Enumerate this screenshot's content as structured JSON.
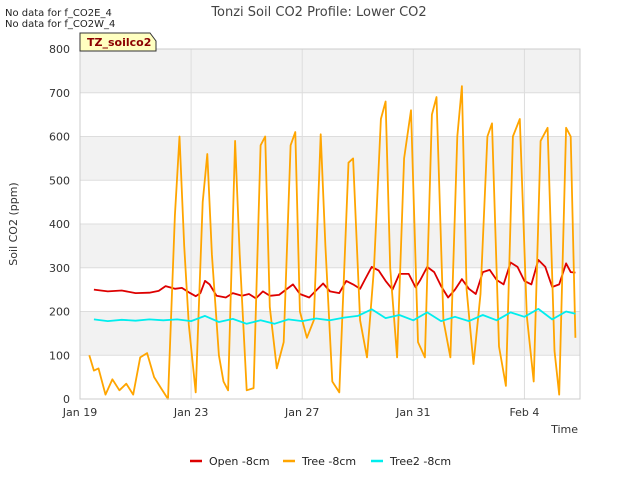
{
  "no_data_messages": [
    "No data for f_CO2E_4",
    "No data for f_CO2W_4"
  ],
  "tag_label": "TZ_soilco2",
  "chart_data": {
    "type": "line",
    "title": "Tonzi Soil CO2 Profile: Lower CO2",
    "xlabel": "Time",
    "ylabel": "Soil CO2 (ppm)",
    "xlim": [
      "2025-01-19",
      "2025-02-06"
    ],
    "ylim": [
      0,
      800
    ],
    "x_ticks": [
      {
        "date": "2025-01-19",
        "label": "Jan 19"
      },
      {
        "date": "2025-01-23",
        "label": "Jan 23"
      },
      {
        "date": "2025-01-27",
        "label": "Jan 27"
      },
      {
        "date": "2025-01-31",
        "label": "Jan 31"
      },
      {
        "date": "2025-02-04",
        "label": "Feb 4"
      }
    ],
    "y_ticks": [
      0,
      100,
      200,
      300,
      400,
      500,
      600,
      700,
      800
    ],
    "grid": true,
    "background_bands": true,
    "legend_position": "bottom",
    "series": [
      {
        "name": "Open -8cm",
        "color": "#dd0000",
        "points": [
          [
            "2025-01-19 12:00",
            250
          ],
          [
            "2025-01-19 18:00",
            248
          ],
          [
            "2025-01-20 00:00",
            246
          ],
          [
            "2025-01-20 12:00",
            248
          ],
          [
            "2025-01-21 00:00",
            242
          ],
          [
            "2025-01-21 12:00",
            243
          ],
          [
            "2025-01-21 20:00",
            247
          ],
          [
            "2025-01-22 02:00",
            258
          ],
          [
            "2025-01-22 10:00",
            252
          ],
          [
            "2025-01-22 16:00",
            254
          ],
          [
            "2025-01-22 22:00",
            244
          ],
          [
            "2025-01-23 04:00",
            235
          ],
          [
            "2025-01-23 08:00",
            242
          ],
          [
            "2025-01-23 12:00",
            270
          ],
          [
            "2025-01-23 16:00",
            262
          ],
          [
            "2025-01-23 22:00",
            236
          ],
          [
            "2025-01-24 06:00",
            232
          ],
          [
            "2025-01-24 12:00",
            242
          ],
          [
            "2025-01-24 20:00",
            236
          ],
          [
            "2025-01-25 02:00",
            240
          ],
          [
            "2025-01-25 08:00",
            230
          ],
          [
            "2025-01-25 14:00",
            246
          ],
          [
            "2025-01-25 20:00",
            236
          ],
          [
            "2025-01-26 04:00",
            238
          ],
          [
            "2025-01-26 10:00",
            250
          ],
          [
            "2025-01-26 16:00",
            262
          ],
          [
            "2025-01-26 22:00",
            240
          ],
          [
            "2025-01-27 06:00",
            232
          ],
          [
            "2025-01-27 12:00",
            248
          ],
          [
            "2025-01-27 18:00",
            264
          ],
          [
            "2025-01-28 00:00",
            246
          ],
          [
            "2025-01-28 08:00",
            242
          ],
          [
            "2025-01-28 14:00",
            270
          ],
          [
            "2025-01-28 20:00",
            262
          ],
          [
            "2025-01-29 02:00",
            252
          ],
          [
            "2025-01-29 06:00",
            272
          ],
          [
            "2025-01-29 12:00",
            302
          ],
          [
            "2025-01-29 18:00",
            294
          ],
          [
            "2025-01-30 00:00",
            270
          ],
          [
            "2025-01-30 06:00",
            250
          ],
          [
            "2025-01-30 12:00",
            286
          ],
          [
            "2025-01-30 20:00",
            286
          ],
          [
            "2025-01-31 02:00",
            255
          ],
          [
            "2025-01-31 06:00",
            272
          ],
          [
            "2025-01-31 12:00",
            302
          ],
          [
            "2025-01-31 18:00",
            290
          ],
          [
            "2025-02-01 00:00",
            258
          ],
          [
            "2025-02-01 06:00",
            232
          ],
          [
            "2025-02-01 12:00",
            250
          ],
          [
            "2025-02-01 18:00",
            274
          ],
          [
            "2025-02-02 00:00",
            252
          ],
          [
            "2025-02-02 06:00",
            240
          ],
          [
            "2025-02-02 12:00",
            290
          ],
          [
            "2025-02-02 18:00",
            295
          ],
          [
            "2025-02-03 00:00",
            272
          ],
          [
            "2025-02-03 06:00",
            262
          ],
          [
            "2025-02-03 12:00",
            312
          ],
          [
            "2025-02-03 18:00",
            302
          ],
          [
            "2025-02-04 00:00",
            270
          ],
          [
            "2025-02-04 06:00",
            262
          ],
          [
            "2025-02-04 12:00",
            318
          ],
          [
            "2025-02-04 18:00",
            302
          ],
          [
            "2025-02-05 00:00",
            256
          ],
          [
            "2025-02-05 06:00",
            262
          ],
          [
            "2025-02-05 12:00",
            310
          ],
          [
            "2025-02-05 16:00",
            290
          ],
          [
            "2025-02-05 20:00",
            289
          ]
        ]
      },
      {
        "name": "Tree -8cm",
        "color": "#ffa500",
        "points": [
          [
            "2025-01-19 08:00",
            100
          ],
          [
            "2025-01-19 12:00",
            65
          ],
          [
            "2025-01-19 16:00",
            70
          ],
          [
            "2025-01-19 22:00",
            10
          ],
          [
            "2025-01-20 04:00",
            45
          ],
          [
            "2025-01-20 10:00",
            20
          ],
          [
            "2025-01-20 16:00",
            35
          ],
          [
            "2025-01-20 22:00",
            10
          ],
          [
            "2025-01-21 04:00",
            95
          ],
          [
            "2025-01-21 10:00",
            105
          ],
          [
            "2025-01-21 16:00",
            50
          ],
          [
            "2025-01-21 22:00",
            25
          ],
          [
            "2025-01-22 04:00",
            0
          ],
          [
            "2025-01-22 10:00",
            420
          ],
          [
            "2025-01-22 14:00",
            600
          ],
          [
            "2025-01-22 18:00",
            350
          ],
          [
            "2025-01-22 22:00",
            170
          ],
          [
            "2025-01-23 04:00",
            15
          ],
          [
            "2025-01-23 10:00",
            450
          ],
          [
            "2025-01-23 14:00",
            560
          ],
          [
            "2025-01-23 18:00",
            330
          ],
          [
            "2025-01-24 00:00",
            100
          ],
          [
            "2025-01-24 04:00",
            40
          ],
          [
            "2025-01-24 08:00",
            20
          ],
          [
            "2025-01-24 14:00",
            590
          ],
          [
            "2025-01-24 18:00",
            330
          ],
          [
            "2025-01-25 00:00",
            20
          ],
          [
            "2025-01-25 06:00",
            25
          ],
          [
            "2025-01-25 12:00",
            580
          ],
          [
            "2025-01-25 16:00",
            600
          ],
          [
            "2025-01-25 20:00",
            210
          ],
          [
            "2025-01-26 02:00",
            70
          ],
          [
            "2025-01-26 08:00",
            130
          ],
          [
            "2025-01-26 14:00",
            580
          ],
          [
            "2025-01-26 18:00",
            610
          ],
          [
            "2025-01-26 22:00",
            200
          ],
          [
            "2025-01-27 04:00",
            140
          ],
          [
            "2025-01-27 10:00",
            180
          ],
          [
            "2025-01-27 16:00",
            605
          ],
          [
            "2025-01-27 20:00",
            350
          ],
          [
            "2025-01-28 02:00",
            40
          ],
          [
            "2025-01-28 08:00",
            15
          ],
          [
            "2025-01-28 16:00",
            540
          ],
          [
            "2025-01-28 20:00",
            550
          ],
          [
            "2025-01-29 02:00",
            180
          ],
          [
            "2025-01-29 08:00",
            95
          ],
          [
            "2025-01-29 14:00",
            300
          ],
          [
            "2025-01-29 20:00",
            640
          ],
          [
            "2025-01-30 00:00",
            680
          ],
          [
            "2025-01-30 04:00",
            300
          ],
          [
            "2025-01-30 10:00",
            95
          ],
          [
            "2025-01-30 16:00",
            550
          ],
          [
            "2025-01-30 22:00",
            660
          ],
          [
            "2025-01-31 04:00",
            130
          ],
          [
            "2025-01-31 10:00",
            95
          ],
          [
            "2025-01-31 16:00",
            650
          ],
          [
            "2025-01-31 20:00",
            690
          ],
          [
            "2025-02-01 02:00",
            180
          ],
          [
            "2025-02-01 08:00",
            95
          ],
          [
            "2025-02-01 14:00",
            600
          ],
          [
            "2025-02-01 18:00",
            715
          ],
          [
            "2025-02-01 22:00",
            250
          ],
          [
            "2025-02-02 04:00",
            80
          ],
          [
            "2025-02-02 10:00",
            240
          ],
          [
            "2025-02-02 16:00",
            600
          ],
          [
            "2025-02-02 20:00",
            630
          ],
          [
            "2025-02-03 02:00",
            120
          ],
          [
            "2025-02-03 08:00",
            30
          ],
          [
            "2025-02-03 14:00",
            600
          ],
          [
            "2025-02-03 20:00",
            640
          ],
          [
            "2025-02-04 02:00",
            190
          ],
          [
            "2025-02-04 08:00",
            40
          ],
          [
            "2025-02-04 14:00",
            590
          ],
          [
            "2025-02-04 20:00",
            620
          ],
          [
            "2025-02-05 02:00",
            110
          ],
          [
            "2025-02-05 06:00",
            10
          ],
          [
            "2025-02-05 12:00",
            620
          ],
          [
            "2025-02-05 16:00",
            600
          ],
          [
            "2025-02-05 20:00",
            140
          ]
        ]
      },
      {
        "name": "Tree2 -8cm",
        "color": "#00eeee",
        "points": [
          [
            "2025-01-19 12:00",
            182
          ],
          [
            "2025-01-20 00:00",
            178
          ],
          [
            "2025-01-20 12:00",
            181
          ],
          [
            "2025-01-21 00:00",
            179
          ],
          [
            "2025-01-21 12:00",
            182
          ],
          [
            "2025-01-22 00:00",
            180
          ],
          [
            "2025-01-22 12:00",
            182
          ],
          [
            "2025-01-23 00:00",
            178
          ],
          [
            "2025-01-23 12:00",
            190
          ],
          [
            "2025-01-24 00:00",
            176
          ],
          [
            "2025-01-24 12:00",
            183
          ],
          [
            "2025-01-25 00:00",
            172
          ],
          [
            "2025-01-25 12:00",
            180
          ],
          [
            "2025-01-26 00:00",
            172
          ],
          [
            "2025-01-26 12:00",
            182
          ],
          [
            "2025-01-27 00:00",
            178
          ],
          [
            "2025-01-27 12:00",
            184
          ],
          [
            "2025-01-28 00:00",
            180
          ],
          [
            "2025-01-28 12:00",
            186
          ],
          [
            "2025-01-29 00:00",
            190
          ],
          [
            "2025-01-29 12:00",
            205
          ],
          [
            "2025-01-30 00:00",
            185
          ],
          [
            "2025-01-30 12:00",
            192
          ],
          [
            "2025-01-31 00:00",
            180
          ],
          [
            "2025-01-31 12:00",
            198
          ],
          [
            "2025-02-01 00:00",
            178
          ],
          [
            "2025-02-01 12:00",
            188
          ],
          [
            "2025-02-02 00:00",
            178
          ],
          [
            "2025-02-02 12:00",
            192
          ],
          [
            "2025-02-03 00:00",
            180
          ],
          [
            "2025-02-03 12:00",
            198
          ],
          [
            "2025-02-04 00:00",
            188
          ],
          [
            "2025-02-04 12:00",
            206
          ],
          [
            "2025-02-05 00:00",
            182
          ],
          [
            "2025-02-05 12:00",
            200
          ],
          [
            "2025-02-05 20:00",
            195
          ]
        ]
      }
    ]
  }
}
